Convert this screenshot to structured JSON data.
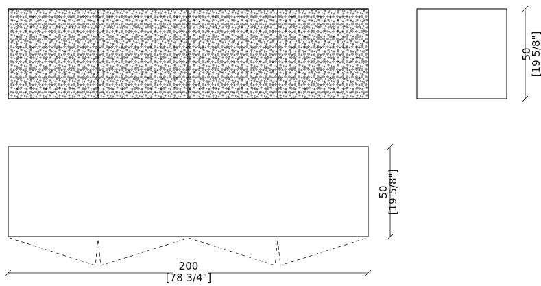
{
  "drawing": {
    "front_view": {
      "panels": 4,
      "pattern": "perforated-dots-and-crosses"
    },
    "side_view": {
      "height_label": "50",
      "height_label_imperial": "[19 5/8\"]"
    },
    "plan_view": {
      "height_label": "50",
      "height_label_imperial": "[19 5/8\"]",
      "width_label": "200",
      "width_label_imperial": "[78 3/4\"]"
    }
  },
  "colors": {
    "line": "#111111",
    "background": "#ffffff"
  }
}
